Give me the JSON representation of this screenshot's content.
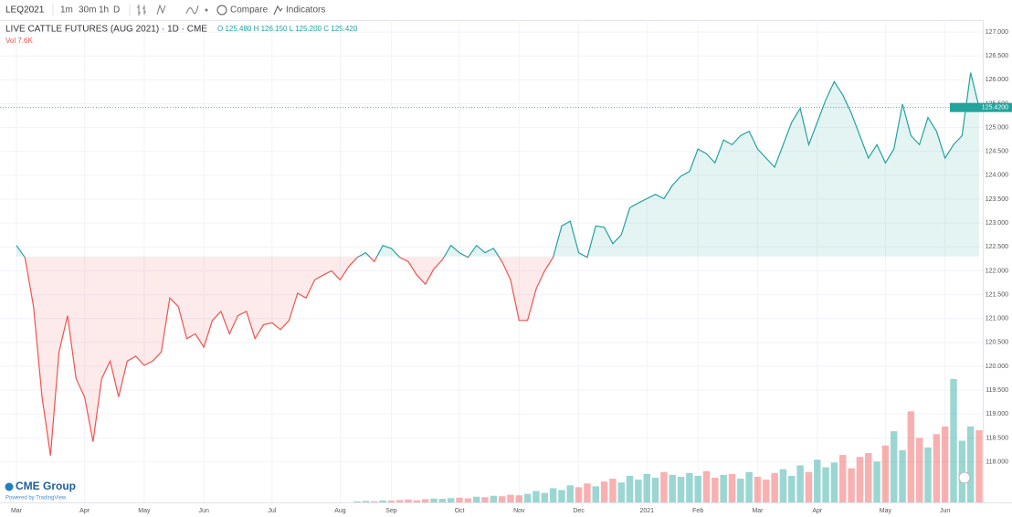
{
  "toolbar": {
    "symbol": "LEQ2021",
    "intervals": [
      "1m",
      "30m",
      "1h",
      "D"
    ],
    "compare": "Compare",
    "indicators": "Indicators"
  },
  "chart_data": {
    "type": "baseline-line",
    "title": "LIVE CATTLE FUTURES (AUG 2021) · 1D · CME",
    "ohlc_label": "O 125.480 H 126.150 L 125.200 C 125.420",
    "volume_label": "Vol 7.6K",
    "logo": "CME Group",
    "logo_sub": "Powered by TradingView",
    "last_label": "125.4200",
    "baseline": 122.3,
    "up_color": "#22a39b",
    "down_color": "#ef5350",
    "values": [
      122.53,
      122.28,
      121.25,
      119.36,
      118.13,
      120.3,
      121.06,
      119.74,
      119.36,
      118.42,
      119.74,
      120.11,
      119.36,
      120.11,
      120.21,
      120.02,
      120.11,
      120.3,
      121.43,
      121.25,
      120.58,
      120.68,
      120.4,
      120.96,
      121.15,
      120.68,
      121.06,
      121.15,
      120.58,
      120.87,
      120.91,
      120.77,
      120.96,
      121.53,
      121.43,
      121.81,
      121.91,
      122.0,
      121.81,
      122.09,
      122.28,
      122.38,
      122.19,
      122.53,
      122.47,
      122.28,
      122.19,
      121.91,
      121.72,
      122.04,
      122.23,
      122.53,
      122.38,
      122.28,
      122.53,
      122.38,
      122.47,
      122.19,
      121.81,
      120.96,
      120.96,
      121.62,
      122.0,
      122.28,
      122.94,
      123.04,
      122.38,
      122.28,
      122.94,
      122.91,
      122.57,
      122.75,
      123.32,
      123.42,
      123.51,
      123.6,
      123.51,
      123.79,
      123.98,
      124.08,
      124.55,
      124.45,
      124.26,
      124.74,
      124.64,
      124.83,
      124.92,
      124.55,
      124.36,
      124.17,
      124.64,
      125.11,
      125.4,
      124.64,
      125.11,
      125.58,
      125.96,
      125.68,
      125.3,
      124.83,
      124.36,
      124.64,
      124.26,
      124.55,
      125.49,
      124.83,
      124.64,
      125.21,
      124.92,
      124.36,
      124.64,
      124.83,
      126.15,
      125.42
    ],
    "volume": [
      0,
      0,
      0,
      0,
      0,
      0,
      0,
      0,
      0,
      0,
      0,
      0,
      0,
      0,
      0,
      0,
      0,
      0,
      0,
      0,
      0,
      0,
      0,
      0,
      0,
      0,
      0,
      0,
      0,
      0,
      0,
      0,
      0,
      0,
      0,
      0,
      0,
      0,
      0,
      0,
      100,
      150,
      120,
      200,
      180,
      250,
      300,
      220,
      350,
      400,
      380,
      450,
      500,
      420,
      600,
      550,
      700,
      650,
      800,
      750,
      900,
      1200,
      1000,
      1500,
      1300,
      1800,
      1600,
      2000,
      1700,
      2200,
      2500,
      2100,
      2800,
      2400,
      3000,
      2600,
      3200,
      2900,
      2700,
      3100,
      2800,
      3300,
      2600,
      2900,
      3000,
      2500,
      3200,
      2700,
      2400,
      3100,
      3500,
      2800,
      3900,
      3200,
      4500,
      3700,
      4200,
      5000,
      3600,
      4800,
      5200,
      4300,
      6000,
      7500,
      5500,
      9600,
      6800,
      5800,
      7200,
      8000,
      13000,
      6500,
      8000,
      7600
    ],
    "xlim": [
      0,
      113
    ],
    "xticks": [
      {
        "value": 0,
        "label": "Mar"
      },
      {
        "value": 8,
        "label": "Apr"
      },
      {
        "value": 15,
        "label": "May"
      },
      {
        "value": 22,
        "label": "Jun"
      },
      {
        "value": 30,
        "label": "Jul"
      },
      {
        "value": 38,
        "label": "Aug"
      },
      {
        "value": 44,
        "label": "Sep"
      },
      {
        "value": 52,
        "label": "Oct"
      },
      {
        "value": 59,
        "label": "Nov"
      },
      {
        "value": 66,
        "label": "Dec"
      },
      {
        "value": 74,
        "label": "2021"
      },
      {
        "value": 80,
        "label": "Feb"
      },
      {
        "value": 87,
        "label": "Mar"
      },
      {
        "value": 94,
        "label": "Apr"
      },
      {
        "value": 102,
        "label": "May"
      },
      {
        "value": 109,
        "label": "Jun"
      }
    ],
    "ylim": [
      117.15,
      127.25
    ],
    "yticks": [
      {
        "value": 127,
        "label": "127.000"
      },
      {
        "value": 126.5,
        "label": "126.500"
      },
      {
        "value": 126,
        "label": "126.000"
      },
      {
        "value": 125.5,
        "label": "125.500"
      },
      {
        "value": 125,
        "label": "125.000"
      },
      {
        "value": 124.5,
        "label": "124.500"
      },
      {
        "value": 124,
        "label": "124.000"
      },
      {
        "value": 123.5,
        "label": "123.500"
      },
      {
        "value": 123,
        "label": "123.000"
      },
      {
        "value": 122.5,
        "label": "122.500"
      },
      {
        "value": 122,
        "label": "122.000"
      },
      {
        "value": 121.5,
        "label": "121.500"
      },
      {
        "value": 121,
        "label": "121.000"
      },
      {
        "value": 120.5,
        "label": "120.500"
      },
      {
        "value": 120,
        "label": "120.000"
      },
      {
        "value": 119.5,
        "label": "119.500"
      },
      {
        "value": 119,
        "label": "119.000"
      },
      {
        "value": 118.5,
        "label": "118.500"
      },
      {
        "value": 118,
        "label": "118.000"
      }
    ],
    "grid": true
  }
}
